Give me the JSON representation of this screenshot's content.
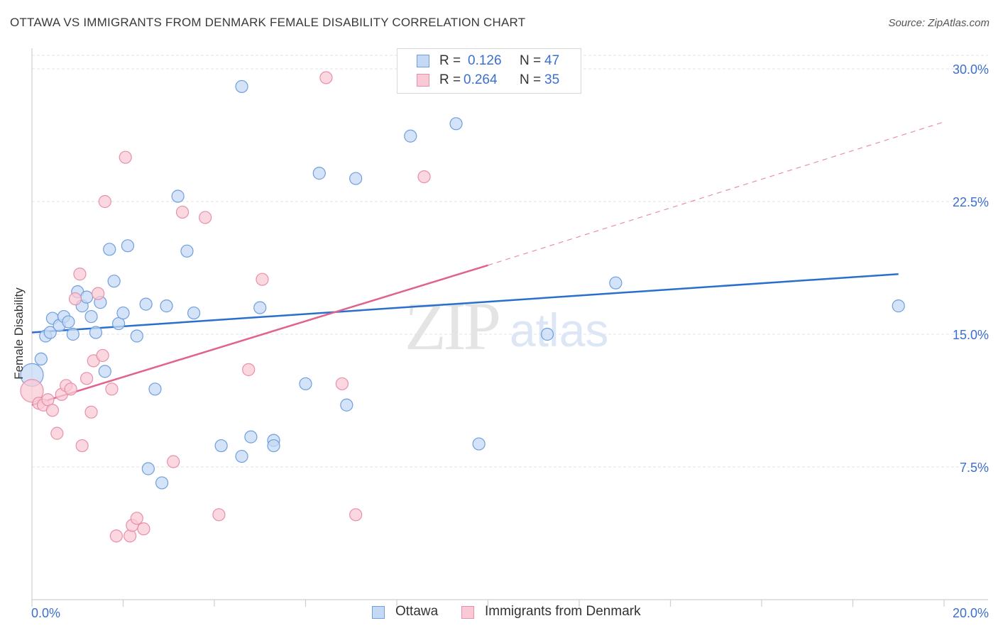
{
  "header": {
    "title": "OTTAWA VS IMMIGRANTS FROM DENMARK FEMALE DISABILITY CORRELATION CHART",
    "source": "Source: ZipAtlas.com"
  },
  "watermark": {
    "zip": "ZIP",
    "atlas": "atlas"
  },
  "legend": {
    "r_label": "R =",
    "n_label": "N =",
    "series": [
      {
        "r": "0.126",
        "n": "47"
      },
      {
        "r": "0.264",
        "n": "35"
      }
    ]
  },
  "colors": {
    "ottawa_fill": "#c5d9f5",
    "ottawa_stroke": "#6e9fde",
    "ottawa_line": "#2a6fcf",
    "denmark_fill": "#f9c9d6",
    "denmark_stroke": "#e88fab",
    "denmark_line": "#e0628d",
    "tick_label": "#3b6fd0",
    "grid": "#e3e3e3"
  },
  "chart_data": {
    "type": "scatter",
    "title": "OTTAWA VS IMMIGRANTS FROM DENMARK FEMALE DISABILITY CORRELATION CHART",
    "xlabel": "",
    "ylabel": "Female Disability",
    "xlim": [
      0,
      20
    ],
    "ylim": [
      0,
      31.5
    ],
    "x_tick_labels": [
      "0.0%",
      "20.0%"
    ],
    "y_ticks": [
      7.5,
      15.0,
      22.5,
      30.0
    ],
    "y_tick_labels": [
      "7.5%",
      "15.0%",
      "22.5%",
      "30.0%"
    ],
    "grid": true,
    "series": [
      {
        "name": "Ottawa",
        "r": 0.126,
        "n": 47,
        "trend": {
          "x": [
            0,
            19.0
          ],
          "y": [
            15.1,
            18.4
          ]
        },
        "points": [
          {
            "x": 0.0,
            "y": 12.7,
            "big": true
          },
          {
            "x": 0.2,
            "y": 13.6
          },
          {
            "x": 0.3,
            "y": 14.9
          },
          {
            "x": 0.4,
            "y": 15.1
          },
          {
            "x": 0.45,
            "y": 15.9
          },
          {
            "x": 0.6,
            "y": 15.5
          },
          {
            "x": 0.7,
            "y": 16.0
          },
          {
            "x": 0.8,
            "y": 15.7
          },
          {
            "x": 0.9,
            "y": 15.0
          },
          {
            "x": 1.0,
            "y": 17.4
          },
          {
            "x": 1.1,
            "y": 16.6
          },
          {
            "x": 1.2,
            "y": 17.1
          },
          {
            "x": 1.3,
            "y": 16.0
          },
          {
            "x": 1.4,
            "y": 15.1
          },
          {
            "x": 1.5,
            "y": 16.8
          },
          {
            "x": 1.6,
            "y": 12.9
          },
          {
            "x": 1.7,
            "y": 19.8
          },
          {
            "x": 1.8,
            "y": 18.0
          },
          {
            "x": 1.9,
            "y": 15.6
          },
          {
            "x": 2.0,
            "y": 16.2
          },
          {
            "x": 2.1,
            "y": 20.0
          },
          {
            "x": 2.3,
            "y": 14.9
          },
          {
            "x": 2.5,
            "y": 16.7
          },
          {
            "x": 2.55,
            "y": 7.4
          },
          {
            "x": 2.7,
            "y": 11.9
          },
          {
            "x": 2.85,
            "y": 6.6
          },
          {
            "x": 2.95,
            "y": 16.6
          },
          {
            "x": 3.2,
            "y": 22.8
          },
          {
            "x": 3.4,
            "y": 19.7
          },
          {
            "x": 3.55,
            "y": 16.2
          },
          {
            "x": 4.15,
            "y": 8.7
          },
          {
            "x": 4.6,
            "y": 8.1
          },
          {
            "x": 4.6,
            "y": 29.0
          },
          {
            "x": 4.8,
            "y": 9.2
          },
          {
            "x": 5.0,
            "y": 16.5
          },
          {
            "x": 5.3,
            "y": 9.0
          },
          {
            "x": 5.3,
            "y": 8.7
          },
          {
            "x": 6.0,
            "y": 12.2
          },
          {
            "x": 6.3,
            "y": 24.1
          },
          {
            "x": 6.9,
            "y": 11.0
          },
          {
            "x": 7.1,
            "y": 23.8
          },
          {
            "x": 8.3,
            "y": 26.2
          },
          {
            "x": 9.3,
            "y": 26.9
          },
          {
            "x": 9.8,
            "y": 8.8
          },
          {
            "x": 11.3,
            "y": 15.0
          },
          {
            "x": 12.8,
            "y": 17.9
          },
          {
            "x": 19.0,
            "y": 16.6
          }
        ]
      },
      {
        "name": "Immigrants from Denmark",
        "r": 0.264,
        "n": 35,
        "trend": {
          "x": [
            0,
            10.0
          ],
          "y": [
            11.0,
            18.9
          ]
        },
        "trend_dashed": {
          "x": [
            10.0,
            20.0
          ],
          "y": [
            18.9,
            27.0
          ]
        },
        "points": [
          {
            "x": 0.0,
            "y": 11.8,
            "big": true
          },
          {
            "x": 0.15,
            "y": 11.1
          },
          {
            "x": 0.25,
            "y": 11.0
          },
          {
            "x": 0.35,
            "y": 11.3
          },
          {
            "x": 0.45,
            "y": 10.7
          },
          {
            "x": 0.55,
            "y": 9.4
          },
          {
            "x": 0.65,
            "y": 11.6
          },
          {
            "x": 0.75,
            "y": 12.1
          },
          {
            "x": 0.85,
            "y": 11.9
          },
          {
            "x": 0.95,
            "y": 17.0
          },
          {
            "x": 1.05,
            "y": 18.4
          },
          {
            "x": 1.1,
            "y": 8.7
          },
          {
            "x": 1.2,
            "y": 12.5
          },
          {
            "x": 1.3,
            "y": 10.6
          },
          {
            "x": 1.35,
            "y": 13.5
          },
          {
            "x": 1.45,
            "y": 17.3
          },
          {
            "x": 1.55,
            "y": 13.8
          },
          {
            "x": 1.6,
            "y": 22.5
          },
          {
            "x": 1.75,
            "y": 11.9
          },
          {
            "x": 1.85,
            "y": 3.6
          },
          {
            "x": 2.05,
            "y": 25.0
          },
          {
            "x": 2.15,
            "y": 3.6
          },
          {
            "x": 2.2,
            "y": 4.2
          },
          {
            "x": 2.3,
            "y": 4.6
          },
          {
            "x": 2.45,
            "y": 4.0
          },
          {
            "x": 3.1,
            "y": 7.8
          },
          {
            "x": 3.3,
            "y": 21.9
          },
          {
            "x": 3.8,
            "y": 21.6
          },
          {
            "x": 4.1,
            "y": 4.8
          },
          {
            "x": 4.75,
            "y": 13.0
          },
          {
            "x": 5.05,
            "y": 18.1
          },
          {
            "x": 6.45,
            "y": 29.5
          },
          {
            "x": 6.8,
            "y": 12.2
          },
          {
            "x": 7.1,
            "y": 4.8
          },
          {
            "x": 8.6,
            "y": 23.9
          }
        ]
      }
    ]
  },
  "bottom_legend": {
    "items": [
      "Ottawa",
      "Immigrants from Denmark"
    ]
  }
}
